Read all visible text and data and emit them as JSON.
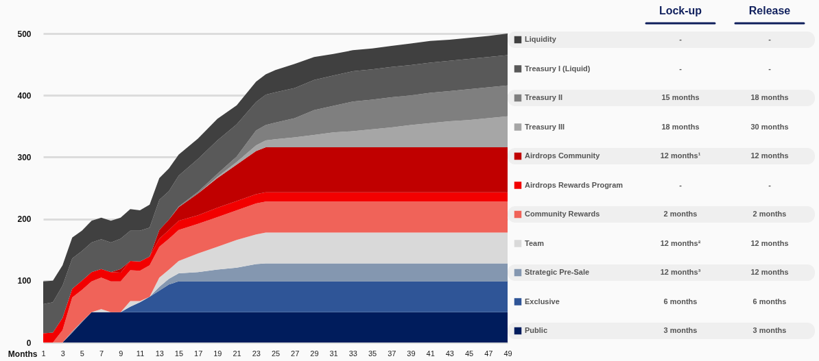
{
  "chart_data": {
    "type": "area",
    "stacked": true,
    "xlabel": "Months",
    "legend": "right",
    "grid": "y",
    "xlim": [
      1,
      49
    ],
    "xticks": [
      1,
      3,
      5,
      7,
      9,
      11,
      13,
      15,
      17,
      19,
      21,
      23,
      25,
      27,
      29,
      31,
      33,
      35,
      37,
      39,
      41,
      43,
      45,
      47,
      49
    ],
    "ylim": [
      0,
      500
    ],
    "yticks": [
      0,
      100,
      200,
      300,
      400,
      500
    ],
    "x": [
      1,
      2,
      3,
      4,
      5,
      6,
      7,
      8,
      9,
      10,
      11,
      12,
      13,
      14,
      15,
      17,
      19,
      21,
      23,
      24,
      25,
      27,
      29,
      31,
      33,
      35,
      37,
      39,
      41,
      43,
      45,
      47,
      49
    ],
    "series": [
      {
        "name": "Public",
        "color": "#001c5c",
        "values": [
          0,
          0,
          0,
          16,
          33,
          49,
          49,
          49,
          49,
          49,
          49,
          49,
          49,
          49,
          49,
          49,
          49,
          49,
          49,
          49,
          49,
          49,
          49,
          49,
          49,
          49,
          49,
          49,
          49,
          49,
          49,
          49,
          49
        ]
      },
      {
        "name": "Exclusive",
        "color": "#2f5597",
        "values": [
          0,
          0,
          0,
          0,
          0,
          0,
          0,
          0,
          0,
          9,
          16,
          25,
          35,
          45,
          50,
          50,
          50,
          50,
          50,
          50,
          50,
          50,
          50,
          50,
          50,
          50,
          50,
          50,
          50,
          50,
          50,
          50,
          50
        ]
      },
      {
        "name": "Strategic Pre-Sale",
        "color": "#8497b0",
        "values": [
          0,
          0,
          0,
          2,
          1,
          0,
          0,
          0,
          0,
          0,
          0,
          0,
          6,
          9,
          13,
          15,
          19,
          22,
          28,
          29,
          29,
          29,
          29,
          29,
          29,
          29,
          29,
          29,
          29,
          29,
          29,
          29,
          29
        ]
      },
      {
        "name": "Team",
        "color": "#d9d9d9",
        "values": [
          0,
          0,
          0,
          0,
          0,
          0,
          5,
          0,
          0,
          9,
          2,
          0,
          15,
          15,
          20,
          30,
          37,
          45,
          48,
          50,
          50,
          50,
          50,
          50,
          50,
          50,
          50,
          50,
          50,
          50,
          50,
          50,
          50
        ]
      },
      {
        "name": "Community Rewards",
        "color": "#f06359",
        "values": [
          0,
          0,
          20,
          55,
          51,
          50,
          51,
          50,
          50,
          50,
          49,
          51,
          50,
          50,
          50,
          48,
          48,
          48,
          50,
          50,
          50,
          50,
          50,
          50,
          50,
          50,
          50,
          50,
          50,
          50,
          50,
          50,
          50
        ]
      },
      {
        "name": "Airdrops Rewards Program",
        "color": "#f20000",
        "values": [
          15,
          16,
          20,
          14,
          15,
          15,
          14,
          15,
          14,
          15,
          15,
          14,
          13,
          14,
          15,
          14,
          15,
          15,
          15,
          15,
          15,
          15,
          15,
          15,
          15,
          15,
          15,
          15,
          15,
          15,
          15,
          15,
          15
        ]
      },
      {
        "name": "Airdrops Community",
        "color": "#c00000",
        "values": [
          0,
          0,
          0,
          0,
          0,
          0,
          0,
          0,
          6,
          0,
          0,
          0,
          14,
          17,
          22,
          35,
          48,
          59,
          70,
          73,
          73,
          73,
          73,
          73,
          73,
          73,
          73,
          73,
          73,
          73,
          73,
          73,
          73
        ]
      },
      {
        "name": "Treasury III",
        "color": "#a6a6a6",
        "values": [
          0,
          0,
          0,
          0,
          0,
          0,
          0,
          0,
          0,
          0,
          0,
          0,
          0,
          0,
          0,
          0,
          2,
          4,
          9,
          11,
          13,
          16,
          20,
          24,
          26,
          29,
          32,
          36,
          39,
          42,
          44,
          47,
          50
        ]
      },
      {
        "name": "Treasury II",
        "color": "#7f7f7f",
        "values": [
          0,
          0,
          0,
          0,
          0,
          0,
          0,
          0,
          0,
          0,
          0,
          0,
          0,
          0,
          1,
          3,
          5,
          9,
          24,
          25,
          27,
          31,
          40,
          43,
          48,
          48,
          49,
          48,
          49,
          49,
          50,
          50,
          50
        ]
      },
      {
        "name": "Treasury I (Liquid)",
        "color": "#595959",
        "values": [
          47,
          49,
          52,
          49,
          48,
          48,
          48,
          48,
          49,
          49,
          50,
          47,
          49,
          46,
          50,
          53,
          54,
          52,
          46,
          49,
          49,
          49,
          49,
          49,
          49,
          49,
          49,
          49,
          49,
          49,
          49,
          49,
          49
        ]
      },
      {
        "name": "Liquidity",
        "color": "#404040",
        "values": [
          37,
          35,
          33,
          34,
          33,
          35,
          35,
          35,
          34,
          35,
          33,
          37,
          35,
          37,
          34,
          33,
          35,
          31,
          33,
          33,
          36,
          39,
          37,
          35,
          34,
          34,
          34,
          35,
          35,
          34,
          34,
          34,
          35
        ]
      }
    ],
    "annotations": [
      "Lock-up",
      "Release",
      "3 months",
      "3 months",
      "6 months",
      "6 months",
      "12 months³",
      "12 months",
      "12 months²",
      "12 months",
      "2 months",
      "2 months",
      "-",
      "-",
      "12 months¹",
      "12 months",
      "18 months",
      "30 months",
      "15 months",
      "18 months",
      "-",
      "-",
      "-",
      "-"
    ]
  }
}
